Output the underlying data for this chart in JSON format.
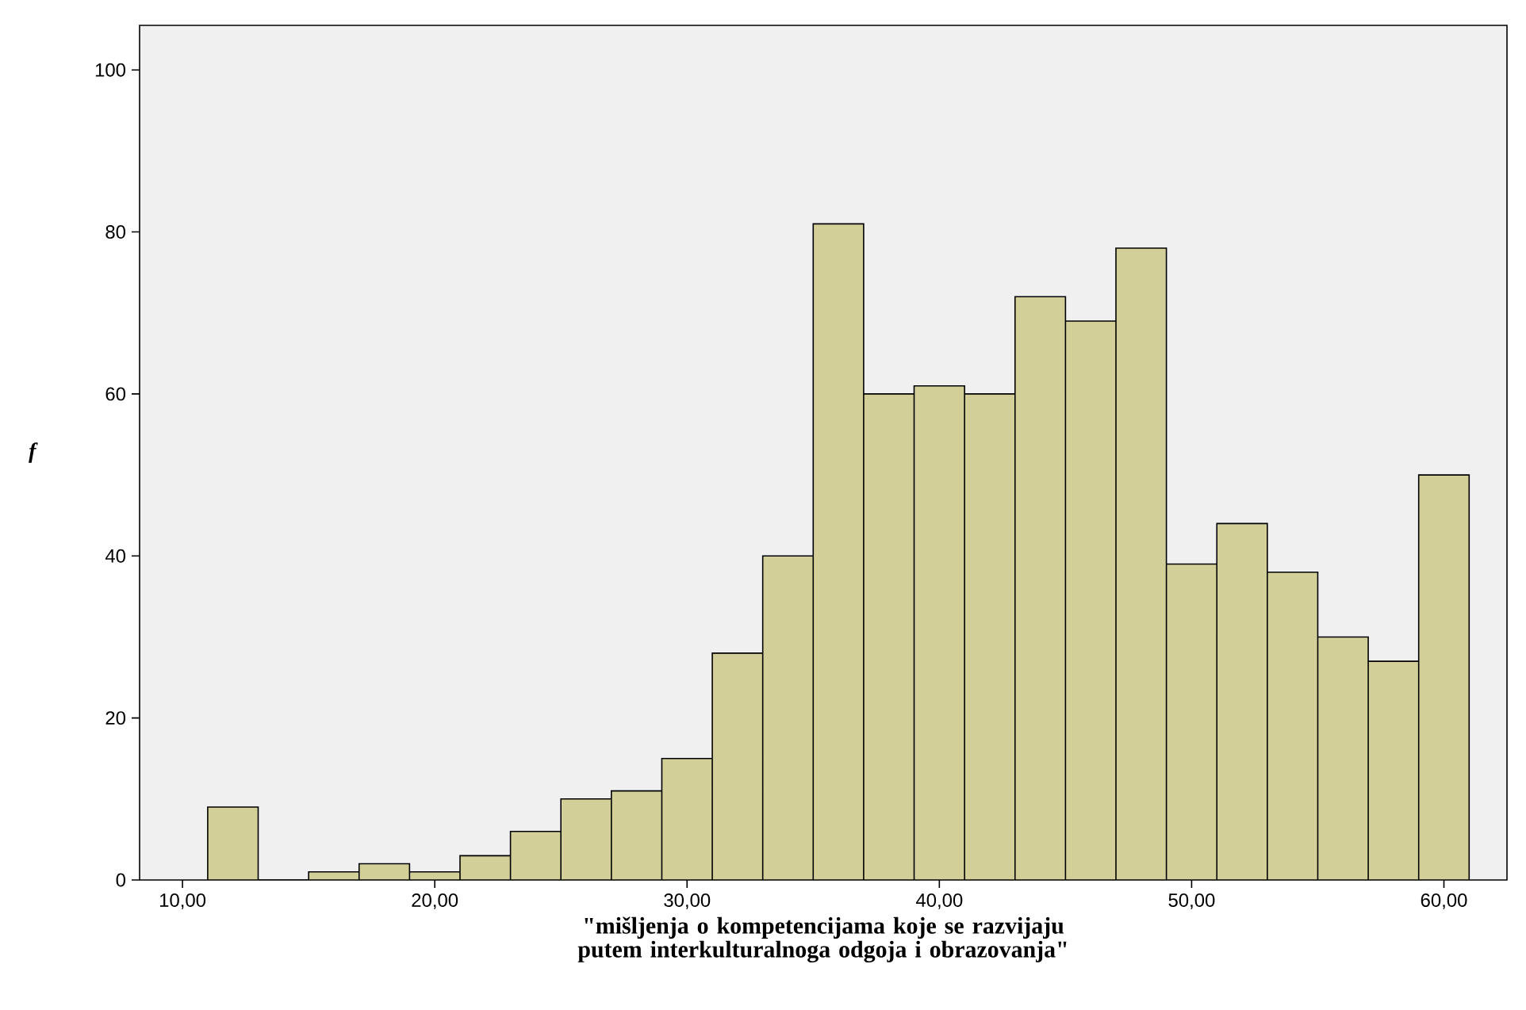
{
  "chart_data": {
    "type": "histogram",
    "xlabel": "\"mišljenja o kompetencijama koje se razvijaju putem interkulturalnoga odgoja i obrazovanja\"",
    "ylabel": "f",
    "bins": [
      11,
      13,
      15,
      17,
      19,
      21,
      23,
      25,
      27,
      29,
      31,
      33,
      35,
      37,
      39,
      41,
      43,
      45,
      47,
      49,
      51,
      53,
      55,
      57,
      59,
      61
    ],
    "values": [
      9,
      0,
      1,
      2,
      1,
      3,
      6,
      10,
      11,
      15,
      28,
      40,
      81,
      60,
      61,
      60,
      72,
      69,
      78,
      39,
      44,
      38,
      30,
      27,
      50
    ],
    "color": "#d3cf98",
    "xlim": [
      8.3,
      62.5
    ],
    "ylim": [
      0,
      105.5
    ],
    "xticks": [
      {
        "value": 10,
        "label": "10,00"
      },
      {
        "value": 20,
        "label": "20,00"
      },
      {
        "value": 30,
        "label": "30,00"
      },
      {
        "value": 40,
        "label": "40,00"
      },
      {
        "value": 50,
        "label": "50,00"
      },
      {
        "value": 60,
        "label": "60,00"
      }
    ],
    "yticks": [
      0,
      20,
      40,
      60,
      80,
      100
    ],
    "grid": false
  }
}
